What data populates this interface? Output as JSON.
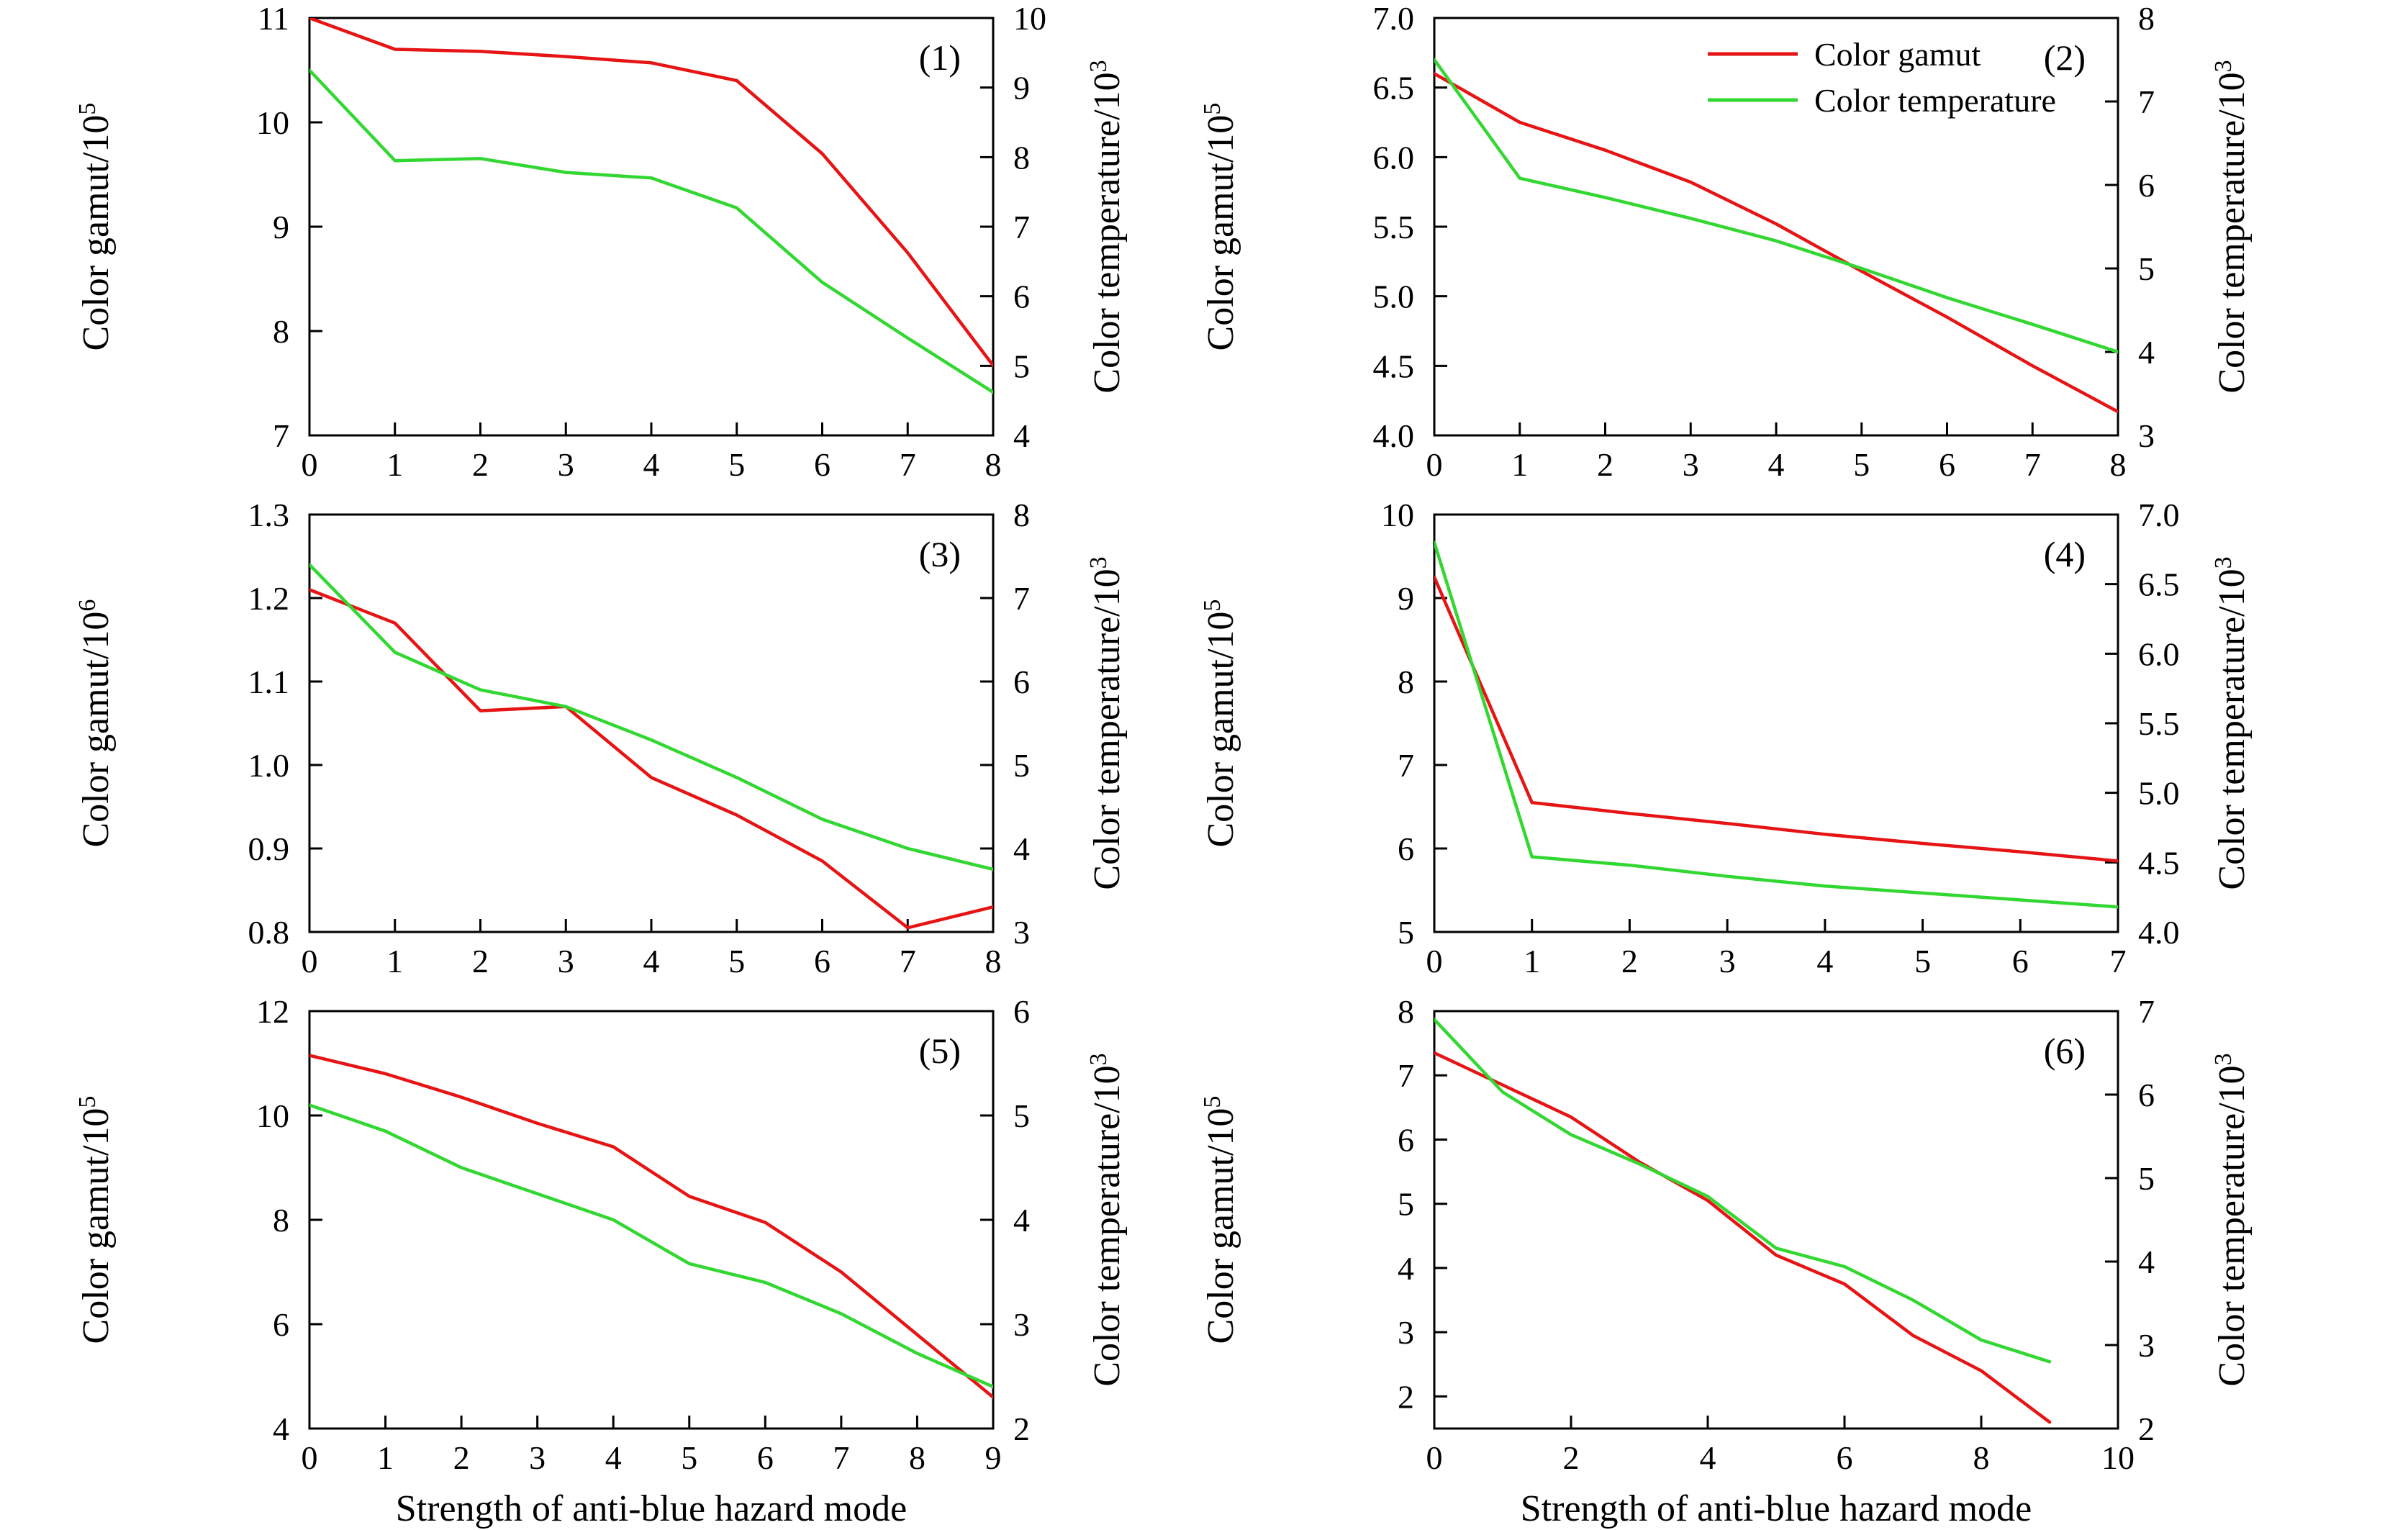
{
  "figure": {
    "xlabel": "Strength of anti-blue hazard mode",
    "background": "#ffffff",
    "text_color": "#000000",
    "axis_color": "#000000",
    "legend": [
      {
        "label": "Color gamut",
        "color": "#e61414"
      },
      {
        "label": "Color temperature",
        "color": "#32d732"
      }
    ]
  },
  "chart_data": [
    {
      "type": "line",
      "panel_label": "(1)",
      "legend_shown": false,
      "x_axis": {
        "range": [
          0,
          8
        ],
        "ticks": [
          "0",
          "1",
          "2",
          "3",
          "4",
          "5",
          "6",
          "7",
          "8"
        ],
        "label_shown": false
      },
      "left_axis": {
        "title_base": "Color gamut/10",
        "title_exp": "5",
        "range": [
          7,
          11
        ],
        "ticks": [
          "7",
          "8",
          "9",
          "10",
          "11"
        ]
      },
      "right_axis": {
        "title_base": "Color temperature/10",
        "title_exp": "3",
        "range": [
          4,
          10
        ],
        "ticks": [
          "4",
          "5",
          "6",
          "7",
          "8",
          "9",
          "10"
        ]
      },
      "series": [
        {
          "name": "Color gamut",
          "axis": "left",
          "color": "#e61414",
          "x": [
            0,
            1,
            2,
            3,
            4,
            5,
            6,
            7,
            8
          ],
          "values": [
            11.0,
            10.7,
            10.68,
            10.63,
            10.57,
            10.4,
            9.7,
            8.75,
            7.67
          ]
        },
        {
          "name": "Color temperature",
          "axis": "right",
          "color": "#32d732",
          "x": [
            0,
            1,
            2,
            3,
            4,
            5,
            6,
            7,
            8
          ],
          "values": [
            9.25,
            7.95,
            7.98,
            7.78,
            7.7,
            7.27,
            6.2,
            5.4,
            4.62
          ]
        }
      ]
    },
    {
      "type": "line",
      "panel_label": "(2)",
      "legend_shown": true,
      "x_axis": {
        "range": [
          0,
          8
        ],
        "ticks": [
          "0",
          "1",
          "2",
          "3",
          "4",
          "5",
          "6",
          "7",
          "8"
        ],
        "label_shown": false
      },
      "left_axis": {
        "title_base": "Color gamut/10",
        "title_exp": "5",
        "range": [
          4,
          7
        ],
        "ticks": [
          "4.0",
          "4.5",
          "5.0",
          "5.5",
          "6.0",
          "6.5",
          "7.0"
        ]
      },
      "right_axis": {
        "title_base": "Color temperature/10",
        "title_exp": "3",
        "range": [
          3,
          8
        ],
        "ticks": [
          "3",
          "4",
          "5",
          "6",
          "7",
          "8"
        ]
      },
      "series": [
        {
          "name": "Color gamut",
          "axis": "left",
          "color": "#e61414",
          "x": [
            0,
            1,
            2,
            3,
            4,
            5,
            6,
            7,
            8
          ],
          "values": [
            6.6,
            6.25,
            6.05,
            5.82,
            5.52,
            5.18,
            4.85,
            4.5,
            4.17
          ]
        },
        {
          "name": "Color temperature",
          "axis": "right",
          "color": "#32d732",
          "x": [
            0,
            1,
            2,
            3,
            4,
            5,
            6,
            7,
            8
          ],
          "values": [
            7.5,
            6.08,
            5.85,
            5.6,
            5.33,
            5.0,
            4.65,
            4.33,
            4.0
          ]
        }
      ]
    },
    {
      "type": "line",
      "panel_label": "(3)",
      "legend_shown": false,
      "x_axis": {
        "range": [
          0,
          8
        ],
        "ticks": [
          "0",
          "1",
          "2",
          "3",
          "4",
          "5",
          "6",
          "7",
          "8"
        ],
        "label_shown": false
      },
      "left_axis": {
        "title_base": "Color gamut/10",
        "title_exp": "6",
        "range": [
          0.8,
          1.3
        ],
        "ticks": [
          "0.8",
          "0.9",
          "1.0",
          "1.1",
          "1.2",
          "1.3"
        ]
      },
      "right_axis": {
        "title_base": "Color temperature/10",
        "title_exp": "3",
        "range": [
          3,
          8
        ],
        "ticks": [
          "3",
          "4",
          "5",
          "6",
          "7",
          "8"
        ]
      },
      "series": [
        {
          "name": "Color gamut",
          "axis": "left",
          "color": "#e61414",
          "x": [
            0,
            1,
            2,
            3,
            4,
            5,
            6,
            7,
            8
          ],
          "values": [
            1.21,
            1.17,
            1.065,
            1.07,
            0.985,
            0.94,
            0.885,
            0.805,
            0.83
          ]
        },
        {
          "name": "Color temperature",
          "axis": "right",
          "color": "#32d732",
          "x": [
            0,
            1,
            2,
            3,
            4,
            5,
            6,
            7,
            8
          ],
          "values": [
            7.4,
            6.35,
            5.9,
            5.7,
            5.3,
            4.85,
            4.35,
            4.0,
            3.75
          ]
        }
      ]
    },
    {
      "type": "line",
      "panel_label": "(4)",
      "legend_shown": false,
      "x_axis": {
        "range": [
          0,
          7
        ],
        "ticks": [
          "0",
          "1",
          "2",
          "3",
          "4",
          "5",
          "6",
          "7"
        ],
        "label_shown": false
      },
      "left_axis": {
        "title_base": "Color gamut/10",
        "title_exp": "5",
        "range": [
          5,
          10
        ],
        "ticks": [
          "5",
          "6",
          "7",
          "8",
          "9",
          "10"
        ]
      },
      "right_axis": {
        "title_base": "Color temperature/10",
        "title_exp": "3",
        "range": [
          4,
          7
        ],
        "ticks": [
          "4.0",
          "4.5",
          "5.0",
          "5.5",
          "6.0",
          "6.5",
          "7.0"
        ]
      },
      "series": [
        {
          "name": "Color gamut",
          "axis": "left",
          "color": "#e61414",
          "x": [
            0,
            1,
            2,
            3,
            4,
            5,
            6,
            7
          ],
          "values": [
            9.25,
            6.55,
            6.42,
            6.3,
            6.17,
            6.06,
            5.96,
            5.85
          ]
        },
        {
          "name": "Color temperature",
          "axis": "right",
          "color": "#32d732",
          "x": [
            0,
            1,
            2,
            3,
            4,
            5,
            6,
            7
          ],
          "values": [
            6.8,
            4.54,
            4.48,
            4.4,
            4.33,
            4.28,
            4.23,
            4.18
          ]
        }
      ]
    },
    {
      "type": "line",
      "panel_label": "(5)",
      "legend_shown": false,
      "x_axis": {
        "range": [
          0,
          9
        ],
        "ticks": [
          "0",
          "1",
          "2",
          "3",
          "4",
          "5",
          "6",
          "7",
          "8",
          "9"
        ],
        "label_shown": true
      },
      "left_axis": {
        "title_base": "Color gamut/10",
        "title_exp": "5",
        "range": [
          4,
          12
        ],
        "ticks": [
          "4",
          "6",
          "8",
          "10",
          "12"
        ]
      },
      "right_axis": {
        "title_base": "Color temperature/10",
        "title_exp": "3",
        "range": [
          2,
          6
        ],
        "ticks": [
          "2",
          "3",
          "4",
          "5",
          "6"
        ]
      },
      "series": [
        {
          "name": "Color gamut",
          "axis": "left",
          "color": "#e61414",
          "x": [
            0,
            1,
            2,
            3,
            4,
            5,
            6,
            7,
            8,
            9
          ],
          "values": [
            11.15,
            10.8,
            10.35,
            9.85,
            9.4,
            8.45,
            7.95,
            7.0,
            5.8,
            4.6
          ]
        },
        {
          "name": "Color temperature",
          "axis": "right",
          "color": "#32d732",
          "x": [
            0,
            1,
            2,
            3,
            4,
            5,
            6,
            7,
            8,
            9
          ],
          "values": [
            5.1,
            4.85,
            4.5,
            4.25,
            4.0,
            3.58,
            3.4,
            3.1,
            2.72,
            2.4
          ]
        }
      ]
    },
    {
      "type": "line",
      "panel_label": "(6)",
      "legend_shown": false,
      "x_axis": {
        "range": [
          0,
          10
        ],
        "ticks": [
          "0",
          "2",
          "4",
          "6",
          "8",
          "10"
        ],
        "label_shown": true
      },
      "left_axis": {
        "title_base": "Color gamut/10",
        "title_exp": "5",
        "range": [
          1.5,
          8
        ],
        "ticks": [
          "2",
          "3",
          "4",
          "5",
          "6",
          "7",
          "8"
        ]
      },
      "right_axis": {
        "title_base": "Color temperature/10",
        "title_exp": "3",
        "range": [
          2,
          7
        ],
        "ticks": [
          "2",
          "3",
          "4",
          "5",
          "6",
          "7"
        ]
      },
      "series": [
        {
          "name": "Color gamut",
          "axis": "left",
          "color": "#e61414",
          "x": [
            0,
            1,
            2,
            3,
            4,
            5,
            6,
            7,
            8,
            9
          ],
          "values": [
            7.35,
            6.85,
            6.35,
            5.65,
            5.05,
            4.2,
            3.75,
            2.95,
            2.4,
            1.6
          ]
        },
        {
          "name": "Color temperature",
          "axis": "right",
          "color": "#32d732",
          "x": [
            0,
            1,
            2,
            3,
            4,
            5,
            6,
            7,
            8,
            9
          ],
          "values": [
            6.9,
            6.03,
            5.52,
            5.17,
            4.78,
            4.16,
            3.94,
            3.54,
            3.06,
            2.8
          ]
        }
      ]
    }
  ]
}
